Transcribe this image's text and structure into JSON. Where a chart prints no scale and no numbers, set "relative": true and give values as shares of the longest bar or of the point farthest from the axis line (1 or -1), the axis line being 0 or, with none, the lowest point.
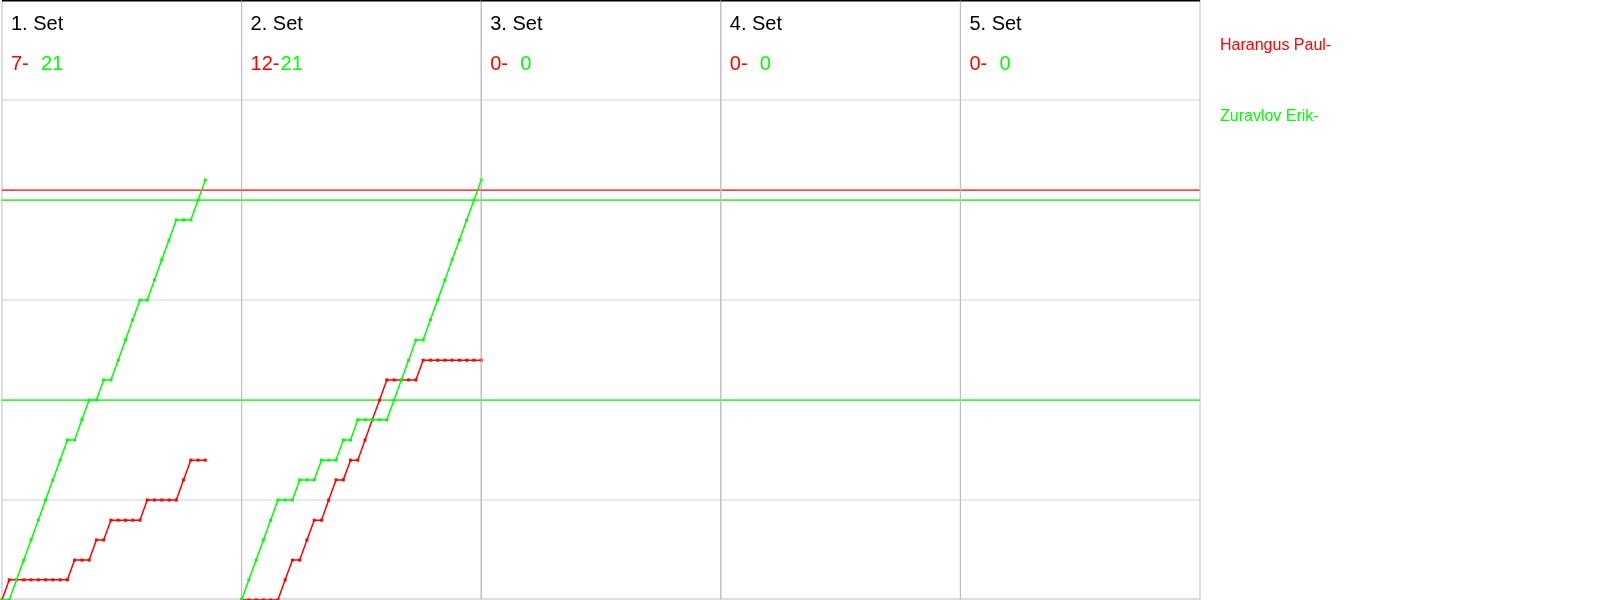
{
  "chart_data": [
    {
      "type": "line",
      "title": "1. Set",
      "annotations": [
        "7-",
        "21"
      ],
      "relative": true,
      "grid": "y",
      "marker": "square",
      "categories": [
        null,
        null,
        null,
        null,
        null,
        null,
        null,
        null,
        null,
        null,
        null,
        null,
        null,
        null,
        null,
        null,
        null,
        null,
        null,
        null,
        null,
        null,
        null,
        null,
        null,
        null,
        null,
        null,
        null,
        null,
        null,
        null,
        null,
        null
      ],
      "ref_lines": [
        {
          "axis": "y",
          "value": 0.976,
          "color": "#ff0000"
        },
        {
          "axis": "y",
          "value": 0.952,
          "color": "#00ff00"
        },
        {
          "axis": "y",
          "value": 0.476,
          "color": "#00ff00"
        }
      ],
      "series": [
        {
          "name": "Harangus Paul-",
          "color": "#ff0000",
          "values": [
            0,
            0.048,
            0.048,
            0.048,
            0.048,
            0.048,
            0.048,
            0.048,
            0.048,
            0.048,
            0.095,
            0.095,
            0.095,
            0.143,
            0.143,
            0.19,
            0.19,
            0.19,
            0.19,
            0.19,
            0.238,
            0.238,
            0.238,
            0.238,
            0.238,
            0.286,
            0.333,
            0.333,
            0.333,
            null,
            null,
            null,
            null,
            null
          ]
        },
        {
          "name": "Zuravlov Erik-",
          "color": "#00ff00",
          "values": [
            0,
            0,
            0.048,
            0.095,
            0.143,
            0.19,
            0.238,
            0.286,
            0.333,
            0.381,
            0.381,
            0.429,
            0.476,
            0.476,
            0.524,
            0.524,
            0.571,
            0.619,
            0.667,
            0.714,
            0.714,
            0.762,
            0.81,
            0.857,
            0.905,
            0.905,
            0.905,
            0.952,
            1,
            null,
            null,
            null,
            null,
            null
          ]
        }
      ]
    },
    {
      "type": "line",
      "title": "2. Set",
      "annotations": [
        "12-",
        "21"
      ],
      "relative": true,
      "grid": "y",
      "marker": "square",
      "categories": [
        null,
        null,
        null,
        null,
        null,
        null,
        null,
        null,
        null,
        null,
        null,
        null,
        null,
        null,
        null,
        null,
        null,
        null,
        null,
        null,
        null,
        null,
        null,
        null,
        null,
        null,
        null,
        null,
        null,
        null,
        null,
        null,
        null,
        null
      ],
      "ref_lines": [
        {
          "axis": "y",
          "value": 0.976,
          "color": "#ff0000"
        },
        {
          "axis": "y",
          "value": 0.952,
          "color": "#00ff00"
        },
        {
          "axis": "y",
          "value": 0.476,
          "color": "#00ff00"
        }
      ],
      "series": [
        {
          "color": "#ff0000",
          "values": [
            0,
            0,
            0,
            0,
            0,
            0,
            0.048,
            0.095,
            0.095,
            0.143,
            0.19,
            0.19,
            0.238,
            0.286,
            0.286,
            0.333,
            0.333,
            0.381,
            0.429,
            0.476,
            0.524,
            0.524,
            0.524,
            0.524,
            0.524,
            0.571,
            0.571,
            0.571,
            0.571,
            0.571,
            0.571,
            0.571,
            0.571,
            0.571
          ]
        },
        {
          "color": "#00ff00",
          "values": [
            0,
            0.048,
            0.095,
            0.143,
            0.19,
            0.238,
            0.238,
            0.238,
            0.286,
            0.286,
            0.286,
            0.333,
            0.333,
            0.333,
            0.381,
            0.381,
            0.429,
            0.429,
            0.429,
            0.429,
            0.429,
            0.476,
            0.524,
            0.571,
            0.619,
            0.619,
            0.667,
            0.714,
            0.762,
            0.81,
            0.857,
            0.905,
            0.952,
            1
          ]
        }
      ]
    },
    {
      "type": "other",
      "title": "3. Set",
      "annotations": [
        "0-",
        "0"
      ]
    },
    {
      "type": "other",
      "title": "4. Set",
      "annotations": [
        "0-",
        "0"
      ]
    },
    {
      "type": "other",
      "title": "5. Set",
      "annotations": [
        "0-",
        "0"
      ]
    }
  ]
}
